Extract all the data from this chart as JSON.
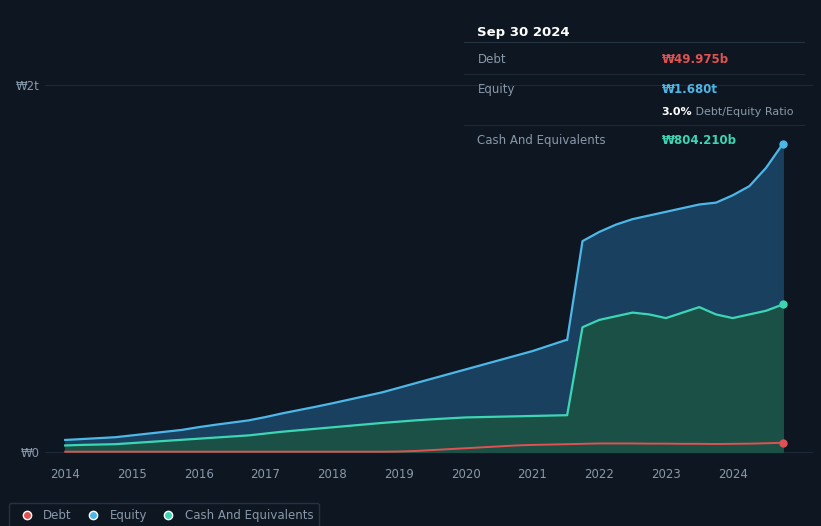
{
  "background_color": "#0e1621",
  "plot_bg_color": "#0e1621",
  "tooltip": {
    "date": "Sep 30 2024",
    "debt_label": "Debt",
    "debt_value": "₩49.975b",
    "equity_label": "Equity",
    "equity_value": "₩1.680t",
    "ratio_label": "3.0%",
    "ratio_rest": " Debt/Equity Ratio",
    "cash_label": "Cash And Equivalents",
    "cash_value": "₩804.210b"
  },
  "ytick_labels": [
    "₩0",
    "₩2t"
  ],
  "ytick_values": [
    0,
    2000000000000
  ],
  "xlim_start": 2013.7,
  "xlim_end": 2025.2,
  "ylim_bottom": -60000000000,
  "ylim_top": 2150000000000,
  "colors": {
    "debt": "#e05252",
    "equity": "#4db8e8",
    "cash": "#3dd6b5",
    "equity_fill": "#1a4060",
    "cash_fill": "#1a5045",
    "grid": "#1e2d3d",
    "text": "#8899aa",
    "white": "#ffffff",
    "tooltip_bg": "#05090f",
    "tooltip_border": "#2a3a4a",
    "legend_bg": "#0e1621",
    "legend_border": "#2a3a4a"
  },
  "years_x": [
    2014.0,
    2014.25,
    2014.5,
    2014.75,
    2015.0,
    2015.25,
    2015.5,
    2015.75,
    2016.0,
    2016.25,
    2016.5,
    2016.75,
    2017.0,
    2017.25,
    2017.5,
    2017.75,
    2018.0,
    2018.25,
    2018.5,
    2018.75,
    2019.0,
    2019.25,
    2019.5,
    2019.75,
    2020.0,
    2020.25,
    2020.5,
    2020.75,
    2021.0,
    2021.25,
    2021.5,
    2021.52,
    2021.75,
    2022.0,
    2022.25,
    2022.5,
    2022.75,
    2023.0,
    2023.25,
    2023.5,
    2023.75,
    2024.0,
    2024.25,
    2024.5,
    2024.75
  ],
  "equity_y": [
    65000000000.0,
    70000000000.0,
    75000000000.0,
    80000000000.0,
    90000000000.0,
    100000000000.0,
    110000000000.0,
    120000000000.0,
    135000000000.0,
    148000000000.0,
    160000000000.0,
    172000000000.0,
    190000000000.0,
    210000000000.0,
    228000000000.0,
    246000000000.0,
    265000000000.0,
    285000000000.0,
    305000000000.0,
    325000000000.0,
    350000000000.0,
    375000000000.0,
    400000000000.0,
    425000000000.0,
    450000000000.0,
    475000000000.0,
    500000000000.0,
    525000000000.0,
    550000000000.0,
    580000000000.0,
    610000000000.0,
    610000000000.0,
    1150000000000.0,
    1200000000000.0,
    1240000000000.0,
    1270000000000.0,
    1290000000000.0,
    1310000000000.0,
    1330000000000.0,
    1350000000000.0,
    1360000000000.0,
    1400000000000.0,
    1450000000000.0,
    1550000000000.0,
    1680000000000.0
  ],
  "cash_y": [
    35000000000.0,
    38000000000.0,
    40000000000.0,
    42000000000.0,
    48000000000.0,
    54000000000.0,
    60000000000.0,
    66000000000.0,
    72000000000.0,
    78000000000.0,
    84000000000.0,
    90000000000.0,
    100000000000.0,
    110000000000.0,
    118000000000.0,
    126000000000.0,
    134000000000.0,
    142000000000.0,
    150000000000.0,
    158000000000.0,
    165000000000.0,
    172000000000.0,
    178000000000.0,
    183000000000.0,
    188000000000.0,
    190000000000.0,
    192000000000.0,
    194000000000.0,
    196000000000.0,
    198000000000.0,
    200000000000.0,
    200000000000.0,
    680000000000.0,
    720000000000.0,
    740000000000.0,
    760000000000.0,
    750000000000.0,
    730000000000.0,
    760000000000.0,
    790000000000.0,
    750000000000.0,
    730000000000.0,
    750000000000.0,
    770000000000.0,
    804210000000.0
  ],
  "debt_y": [
    1000000000.0,
    1000000000.0,
    1000000000.0,
    1000000000.0,
    1000000000.0,
    1000000000.0,
    1000000000.0,
    1000000000.0,
    1000000000.0,
    1000000000.0,
    1000000000.0,
    1000000000.0,
    1000000000.0,
    1000000000.0,
    1000000000.0,
    1000000000.0,
    1000000000.0,
    1000000000.0,
    1000000000.0,
    1000000000.0,
    2000000000.0,
    5000000000.0,
    10000000000.0,
    15000000000.0,
    20000000000.0,
    25000000000.0,
    30000000000.0,
    35000000000.0,
    38000000000.0,
    40000000000.0,
    42000000000.0,
    42000000000.0,
    44000000000.0,
    46000000000.0,
    46000000000.0,
    46000000000.0,
    45000000000.0,
    45000000000.0,
    44000000000.0,
    44000000000.0,
    43000000000.0,
    44000000000.0,
    45000000000.0,
    47000000000.0,
    49975000000.0
  ],
  "legend_labels": [
    "Debt",
    "Equity",
    "Cash And Equivalents"
  ]
}
